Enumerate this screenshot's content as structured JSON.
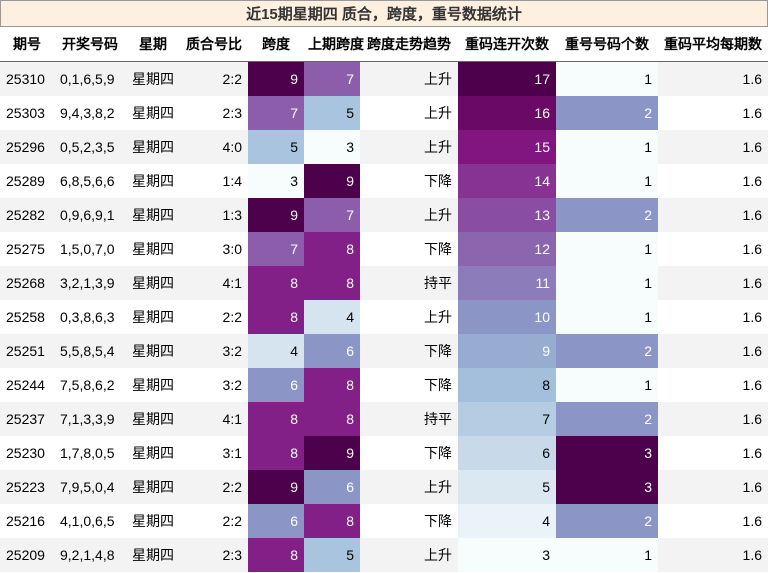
{
  "header": {
    "title": "近15期星期四 质合，跨度，重号数据统计"
  },
  "table": {
    "columns": [
      "期号",
      "开奖号码",
      "星期",
      "质合号比",
      "跨度",
      "上期跨度",
      "跨度走势趋势",
      "重码连开次数",
      "重号号码个数",
      "重码平均每期数"
    ],
    "rows": [
      [
        25310,
        "0,1,6,5,9",
        "星期四",
        "2:2",
        9,
        7,
        "上升",
        17,
        1,
        1.6
      ],
      [
        25303,
        "9,4,3,8,2",
        "星期四",
        "2:3",
        7,
        5,
        "上升",
        16,
        2,
        1.6
      ],
      [
        25296,
        "0,5,2,3,5",
        "星期四",
        "4:0",
        5,
        3,
        "上升",
        15,
        1,
        1.6
      ],
      [
        25289,
        "6,8,5,6,6",
        "星期四",
        "1:4",
        3,
        9,
        "下降",
        14,
        1,
        1.6
      ],
      [
        25282,
        "0,9,6,9,1",
        "星期四",
        "1:3",
        9,
        7,
        "上升",
        13,
        2,
        1.6
      ],
      [
        25275,
        "1,5,0,7,0",
        "星期四",
        "3:0",
        7,
        8,
        "下降",
        12,
        1,
        1.6
      ],
      [
        25268,
        "3,2,1,3,9",
        "星期四",
        "4:1",
        8,
        8,
        "持平",
        11,
        1,
        1.6
      ],
      [
        25258,
        "0,3,8,6,3",
        "星期四",
        "2:2",
        8,
        4,
        "上升",
        10,
        1,
        1.6
      ],
      [
        25251,
        "5,5,8,5,4",
        "星期四",
        "3:2",
        4,
        6,
        "下降",
        9,
        2,
        1.6
      ],
      [
        25244,
        "7,5,8,6,2",
        "星期四",
        "3:2",
        6,
        8,
        "下降",
        8,
        1,
        1.6
      ],
      [
        25237,
        "7,1,3,3,9",
        "星期四",
        "4:1",
        8,
        8,
        "持平",
        7,
        2,
        1.6
      ],
      [
        25230,
        "1,7,8,0,5",
        "星期四",
        "3:1",
        8,
        9,
        "下降",
        6,
        3,
        1.6
      ],
      [
        25223,
        "7,9,5,0,4",
        "星期四",
        "2:2",
        9,
        6,
        "上升",
        5,
        3,
        1.6
      ],
      [
        25216,
        "4,1,0,6,5",
        "星期四",
        "2:2",
        6,
        8,
        "下降",
        4,
        2,
        1.6
      ],
      [
        25209,
        "9,2,1,4,8",
        "星期四",
        "2:3",
        8,
        5,
        "上升",
        3,
        1,
        1.6
      ]
    ]
  }
}
